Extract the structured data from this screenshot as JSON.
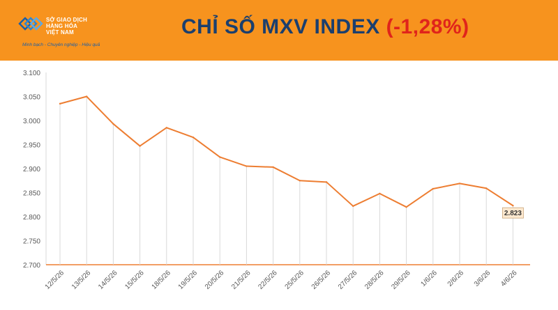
{
  "header": {
    "logo_lines": [
      "SỞ GIAO DỊCH",
      "HÀNG HÓA",
      "VIỆT NAM"
    ],
    "logo_tagline": "Minh bạch - Chuyên nghiệp - Hiệu quả",
    "title": "CHỈ SỐ MXV INDEX",
    "change": "(-1,28%)",
    "brand_color": "#f7931e",
    "title_color": "#1b3f6e",
    "change_color": "#e0241b"
  },
  "chart_data": {
    "type": "line",
    "categories": [
      "12/5/26",
      "13/5/26",
      "14/5/26",
      "15/5/26",
      "18/5/26",
      "19/5/26",
      "20/5/26",
      "21/5/26",
      "22/5/26",
      "25/5/26",
      "26/5/26",
      "27/5/26",
      "28/5/26",
      "29/5/26",
      "1/6/26",
      "2/6/26",
      "3/6/26",
      "4/6/26"
    ],
    "values": [
      3035,
      3050,
      2993,
      2947,
      2985,
      2965,
      2924,
      2905,
      2903,
      2875,
      2872,
      2822,
      2848,
      2820,
      2858,
      2869,
      2859,
      2823
    ],
    "y_ticks": [
      "2.700",
      "2.750",
      "2.800",
      "2.850",
      "2.900",
      "2.950",
      "3.000",
      "3.050",
      "3.100"
    ],
    "ylim": [
      2700,
      3100
    ],
    "last_label": "2.823",
    "line_color": "#ed7d31",
    "drop_line_color": "#d9d9d9",
    "grid": false
  }
}
